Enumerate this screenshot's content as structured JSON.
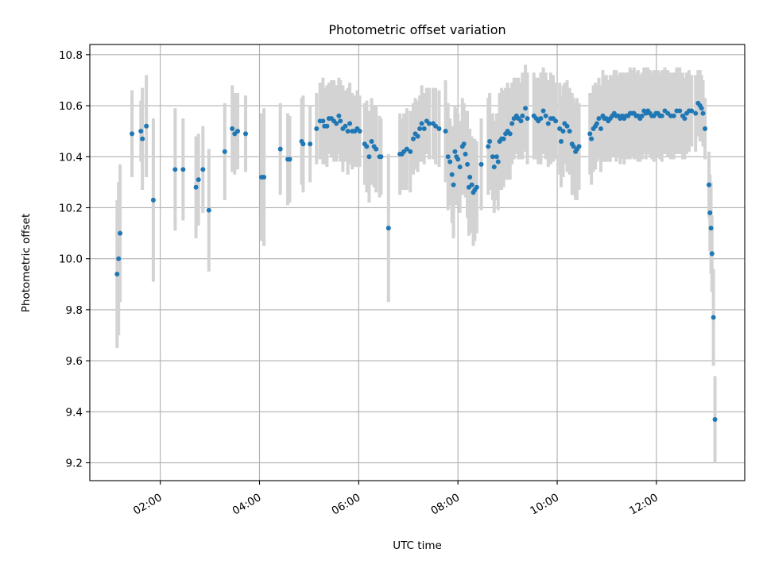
{
  "chart_data": {
    "type": "scatter",
    "title": "Photometric offset variation",
    "xlabel": "UTC time",
    "ylabel": "Photometric offset",
    "x_unit": "hours UTC",
    "xlim": [
      0.58,
      13.78
    ],
    "ylim": [
      9.13,
      10.84
    ],
    "x_ticks": [
      {
        "value": 2,
        "label": "02:00"
      },
      {
        "value": 4,
        "label": "04:00"
      },
      {
        "value": 6,
        "label": "06:00"
      },
      {
        "value": 8,
        "label": "08:00"
      },
      {
        "value": 10,
        "label": "10:00"
      },
      {
        "value": 12,
        "label": "12:00"
      }
    ],
    "y_ticks": [
      {
        "value": 9.2,
        "label": "9.2"
      },
      {
        "value": 9.4,
        "label": "9.4"
      },
      {
        "value": 9.6,
        "label": "9.6"
      },
      {
        "value": 9.8,
        "label": "9.8"
      },
      {
        "value": 10.0,
        "label": "10.0"
      },
      {
        "value": 10.2,
        "label": "10.2"
      },
      {
        "value": 10.4,
        "label": "10.4"
      },
      {
        "value": 10.6,
        "label": "10.6"
      },
      {
        "value": 10.8,
        "label": "10.8"
      }
    ],
    "grid": true,
    "legend": "none",
    "colors": {
      "points": "#1f77b4",
      "errorbars": "#d3d3d3",
      "grid": "#b0b0b0"
    },
    "series": [
      {
        "points": [
          [
            1.13,
            9.94,
            0.29
          ],
          [
            1.16,
            10.0,
            0.3
          ],
          [
            1.19,
            10.1,
            0.27
          ],
          [
            1.43,
            10.49,
            0.17
          ],
          [
            1.61,
            10.5,
            0.12
          ],
          [
            1.64,
            10.47,
            0.2
          ],
          [
            1.72,
            10.52,
            0.2
          ],
          [
            1.86,
            10.23,
            0.32
          ],
          [
            2.3,
            10.35,
            0.24
          ],
          [
            2.46,
            10.35,
            0.2
          ],
          [
            2.72,
            10.28,
            0.2
          ],
          [
            2.77,
            10.31,
            0.18
          ],
          [
            2.86,
            10.35,
            0.17
          ],
          [
            2.98,
            10.19,
            0.24
          ],
          [
            3.3,
            10.42,
            0.19
          ],
          [
            3.45,
            10.51,
            0.17
          ],
          [
            3.5,
            10.49,
            0.16
          ],
          [
            3.56,
            10.5,
            0.15
          ],
          [
            3.72,
            10.49,
            0.15
          ],
          [
            4.04,
            10.32,
            0.25
          ],
          [
            4.09,
            10.32,
            0.27
          ],
          [
            4.42,
            10.43,
            0.18
          ],
          [
            4.57,
            10.39,
            0.18
          ],
          [
            4.61,
            10.39,
            0.17
          ],
          [
            4.85,
            10.46,
            0.17
          ],
          [
            4.88,
            10.45,
            0.19
          ],
          [
            5.02,
            10.45,
            0.15
          ],
          [
            5.15,
            10.51,
            0.14
          ],
          [
            5.22,
            10.54,
            0.15
          ],
          [
            5.28,
            10.54,
            0.17
          ],
          [
            5.31,
            10.52,
            0.15
          ],
          [
            5.36,
            10.52,
            0.16
          ],
          [
            5.4,
            10.55,
            0.14
          ],
          [
            5.45,
            10.55,
            0.15
          ],
          [
            5.5,
            10.54,
            0.16
          ],
          [
            5.55,
            10.53,
            0.15
          ],
          [
            5.6,
            10.56,
            0.15
          ],
          [
            5.63,
            10.54,
            0.16
          ],
          [
            5.68,
            10.51,
            0.17
          ],
          [
            5.73,
            10.52,
            0.14
          ],
          [
            5.78,
            10.5,
            0.17
          ],
          [
            5.82,
            10.53,
            0.16
          ],
          [
            5.87,
            10.5,
            0.15
          ],
          [
            5.92,
            10.5,
            0.14
          ],
          [
            5.97,
            10.51,
            0.15
          ],
          [
            6.02,
            10.5,
            0.14
          ],
          [
            6.12,
            10.45,
            0.16
          ],
          [
            6.16,
            10.44,
            0.18
          ],
          [
            6.21,
            10.4,
            0.18
          ],
          [
            6.26,
            10.46,
            0.17
          ],
          [
            6.31,
            10.44,
            0.16
          ],
          [
            6.35,
            10.43,
            0.17
          ],
          [
            6.42,
            10.4,
            0.16
          ],
          [
            6.45,
            10.4,
            0.15
          ],
          [
            6.6,
            10.12,
            0.29
          ],
          [
            6.83,
            10.41,
            0.16
          ],
          [
            6.87,
            10.41,
            0.14
          ],
          [
            6.91,
            10.42,
            0.15
          ],
          [
            6.97,
            10.43,
            0.16
          ],
          [
            7.04,
            10.42,
            0.16
          ],
          [
            7.1,
            10.47,
            0.14
          ],
          [
            7.14,
            10.49,
            0.14
          ],
          [
            7.19,
            10.48,
            0.14
          ],
          [
            7.23,
            10.51,
            0.13
          ],
          [
            7.27,
            10.53,
            0.15
          ],
          [
            7.32,
            10.51,
            0.14
          ],
          [
            7.37,
            10.54,
            0.13
          ],
          [
            7.42,
            10.53,
            0.14
          ],
          [
            7.5,
            10.53,
            0.14
          ],
          [
            7.55,
            10.52,
            0.15
          ],
          [
            7.62,
            10.51,
            0.15
          ],
          [
            7.75,
            10.5,
            0.2
          ],
          [
            7.8,
            10.4,
            0.21
          ],
          [
            7.84,
            10.38,
            0.17
          ],
          [
            7.88,
            10.33,
            0.19
          ],
          [
            7.91,
            10.29,
            0.21
          ],
          [
            7.94,
            10.42,
            0.18
          ],
          [
            7.97,
            10.4,
            0.19
          ],
          [
            8.0,
            10.39,
            0.18
          ],
          [
            8.04,
            10.36,
            0.18
          ],
          [
            8.09,
            10.44,
            0.19
          ],
          [
            8.12,
            10.45,
            0.16
          ],
          [
            8.15,
            10.41,
            0.17
          ],
          [
            8.19,
            10.37,
            0.21
          ],
          [
            8.22,
            10.28,
            0.19
          ],
          [
            8.24,
            10.32,
            0.19
          ],
          [
            8.28,
            10.29,
            0.19
          ],
          [
            8.31,
            10.26,
            0.21
          ],
          [
            8.34,
            10.27,
            0.2
          ],
          [
            8.38,
            10.28,
            0.18
          ],
          [
            8.47,
            10.37,
            0.18
          ],
          [
            8.61,
            10.44,
            0.19
          ],
          [
            8.64,
            10.46,
            0.19
          ],
          [
            8.7,
            10.4,
            0.17
          ],
          [
            8.73,
            10.36,
            0.18
          ],
          [
            8.78,
            10.4,
            0.17
          ],
          [
            8.81,
            10.38,
            0.19
          ],
          [
            8.84,
            10.46,
            0.19
          ],
          [
            8.88,
            10.47,
            0.2
          ],
          [
            8.92,
            10.47,
            0.19
          ],
          [
            8.96,
            10.49,
            0.18
          ],
          [
            9.0,
            10.5,
            0.19
          ],
          [
            9.05,
            10.49,
            0.18
          ],
          [
            9.09,
            10.53,
            0.16
          ],
          [
            9.13,
            10.55,
            0.16
          ],
          [
            9.18,
            10.56,
            0.15
          ],
          [
            9.22,
            10.55,
            0.16
          ],
          [
            9.27,
            10.54,
            0.15
          ],
          [
            9.3,
            10.56,
            0.17
          ],
          [
            9.36,
            10.59,
            0.17
          ],
          [
            9.4,
            10.55,
            0.18
          ],
          [
            9.53,
            10.56,
            0.17
          ],
          [
            9.58,
            10.55,
            0.16
          ],
          [
            9.62,
            10.54,
            0.17
          ],
          [
            9.67,
            10.55,
            0.18
          ],
          [
            9.72,
            10.58,
            0.17
          ],
          [
            9.77,
            10.56,
            0.17
          ],
          [
            9.82,
            10.53,
            0.17
          ],
          [
            9.87,
            10.55,
            0.18
          ],
          [
            9.92,
            10.55,
            0.17
          ],
          [
            9.97,
            10.54,
            0.15
          ],
          [
            10.05,
            10.51,
            0.18
          ],
          [
            10.08,
            10.46,
            0.18
          ],
          [
            10.12,
            10.5,
            0.18
          ],
          [
            10.15,
            10.53,
            0.16
          ],
          [
            10.2,
            10.52,
            0.18
          ],
          [
            10.25,
            10.5,
            0.17
          ],
          [
            10.3,
            10.45,
            0.2
          ],
          [
            10.33,
            10.44,
            0.19
          ],
          [
            10.37,
            10.42,
            0.19
          ],
          [
            10.4,
            10.43,
            0.2
          ],
          [
            10.44,
            10.44,
            0.17
          ],
          [
            10.66,
            10.49,
            0.16
          ],
          [
            10.69,
            10.47,
            0.18
          ],
          [
            10.73,
            10.51,
            0.17
          ],
          [
            10.77,
            10.52,
            0.17
          ],
          [
            10.8,
            10.53,
            0.15
          ],
          [
            10.84,
            10.55,
            0.16
          ],
          [
            10.88,
            10.51,
            0.17
          ],
          [
            10.92,
            10.56,
            0.18
          ],
          [
            10.95,
            10.55,
            0.17
          ],
          [
            10.99,
            10.55,
            0.17
          ],
          [
            11.03,
            10.54,
            0.16
          ],
          [
            11.07,
            10.55,
            0.17
          ],
          [
            11.11,
            10.56,
            0.16
          ],
          [
            11.15,
            10.57,
            0.17
          ],
          [
            11.19,
            10.56,
            0.18
          ],
          [
            11.23,
            10.56,
            0.16
          ],
          [
            11.27,
            10.55,
            0.18
          ],
          [
            11.31,
            10.56,
            0.17
          ],
          [
            11.35,
            10.55,
            0.18
          ],
          [
            11.39,
            10.56,
            0.17
          ],
          [
            11.43,
            10.56,
            0.17
          ],
          [
            11.47,
            10.57,
            0.18
          ],
          [
            11.51,
            10.57,
            0.17
          ],
          [
            11.55,
            10.57,
            0.18
          ],
          [
            11.59,
            10.56,
            0.17
          ],
          [
            11.63,
            10.56,
            0.18
          ],
          [
            11.67,
            10.55,
            0.17
          ],
          [
            11.71,
            10.56,
            0.17
          ],
          [
            11.75,
            10.58,
            0.17
          ],
          [
            11.79,
            10.57,
            0.18
          ],
          [
            11.83,
            10.58,
            0.17
          ],
          [
            11.87,
            10.57,
            0.17
          ],
          [
            11.91,
            10.56,
            0.17
          ],
          [
            11.95,
            10.56,
            0.18
          ],
          [
            11.99,
            10.57,
            0.17
          ],
          [
            12.03,
            10.57,
            0.17
          ],
          [
            12.07,
            10.56,
            0.17
          ],
          [
            12.11,
            10.56,
            0.18
          ],
          [
            12.17,
            10.58,
            0.17
          ],
          [
            12.23,
            10.57,
            0.17
          ],
          [
            12.29,
            10.56,
            0.17
          ],
          [
            12.35,
            10.56,
            0.17
          ],
          [
            12.41,
            10.58,
            0.17
          ],
          [
            12.47,
            10.58,
            0.17
          ],
          [
            12.53,
            10.56,
            0.17
          ],
          [
            12.57,
            10.55,
            0.16
          ],
          [
            12.61,
            10.57,
            0.16
          ],
          [
            12.66,
            10.58,
            0.16
          ],
          [
            12.71,
            10.58,
            0.14
          ],
          [
            12.79,
            10.57,
            0.15
          ],
          [
            12.84,
            10.61,
            0.13
          ],
          [
            12.88,
            10.6,
            0.14
          ],
          [
            12.91,
            10.59,
            0.13
          ],
          [
            12.94,
            10.57,
            0.13
          ],
          [
            12.98,
            10.51,
            0.12
          ],
          [
            13.06,
            10.29,
            0.13
          ],
          [
            13.08,
            10.18,
            0.15
          ],
          [
            13.1,
            10.12,
            0.18
          ],
          [
            13.12,
            10.02,
            0.15
          ],
          [
            13.15,
            9.77,
            0.19
          ],
          [
            13.18,
            9.37,
            0.17
          ]
        ]
      }
    ]
  }
}
